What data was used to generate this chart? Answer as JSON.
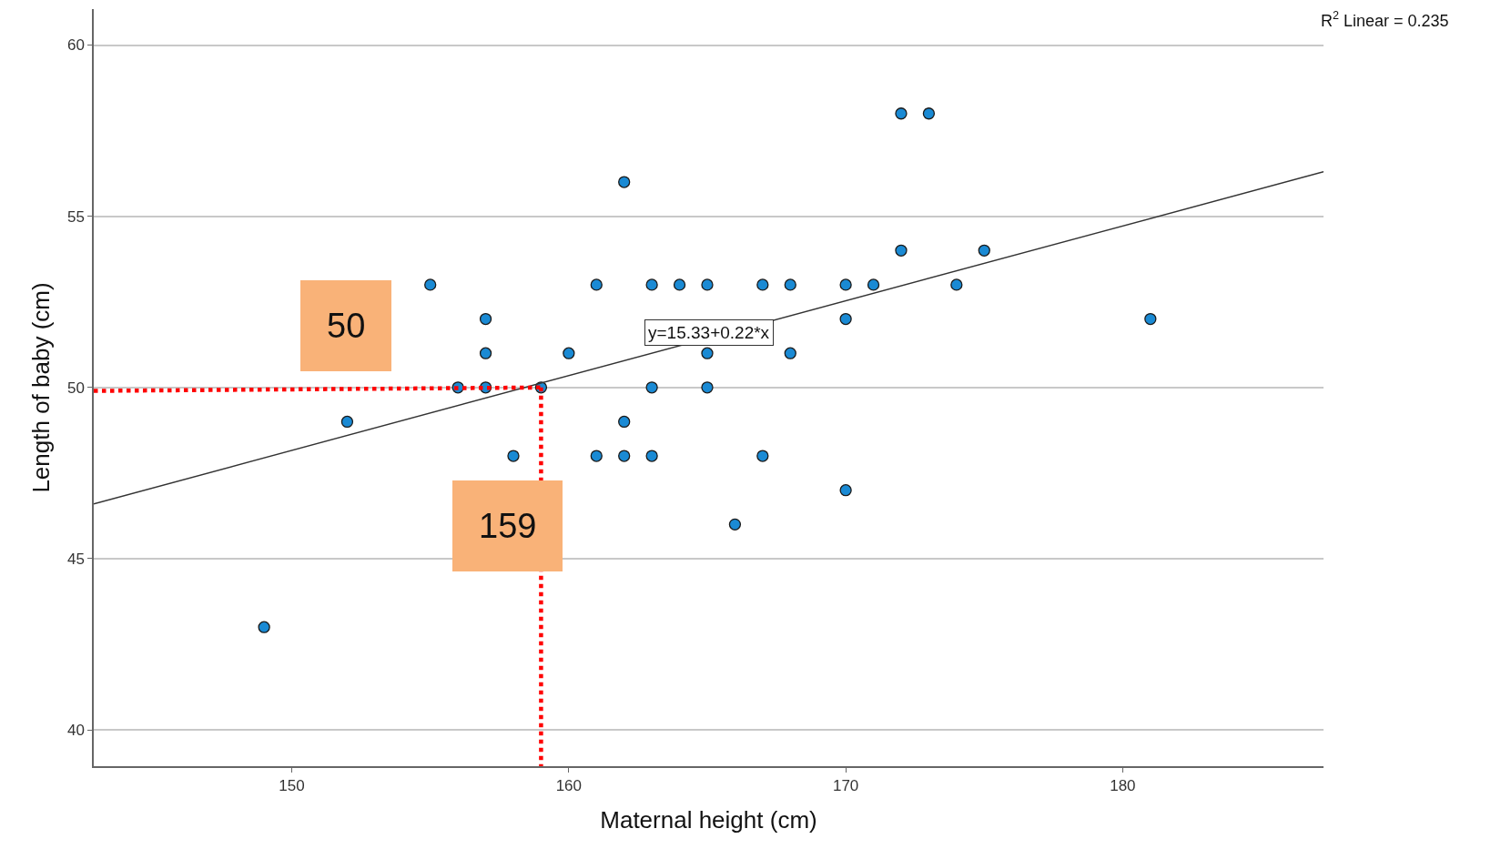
{
  "chart_data": {
    "type": "scatter",
    "xlabel": "Maternal height (cm)",
    "ylabel": "Length of baby (cm)",
    "xlim": [
      142.85,
      187.25
    ],
    "ylim": [
      38.94,
      61.05
    ],
    "xticks": [
      150,
      160,
      170,
      180
    ],
    "yticks": [
      40,
      45,
      50,
      55,
      60
    ],
    "grid": "y",
    "series": [
      {
        "color": "#1a8ad4",
        "marker": "circle",
        "x": [
          149,
          152,
          155,
          156,
          157,
          157,
          157,
          158,
          159,
          160,
          161,
          161,
          162,
          162,
          162,
          163,
          163,
          163,
          164,
          165,
          165,
          165,
          166,
          167,
          167,
          168,
          168,
          170,
          170,
          170,
          171,
          172,
          172,
          173,
          174,
          175,
          181
        ],
        "values": [
          43,
          49,
          53,
          50,
          52,
          51,
          50,
          48,
          50,
          51,
          53,
          48,
          56,
          49,
          48,
          53,
          50,
          48,
          53,
          53,
          51,
          50,
          46,
          53,
          48,
          53,
          51,
          53,
          52,
          47,
          53,
          58,
          54,
          58,
          53,
          54,
          52
        ]
      },
      {
        "type": "line",
        "color": "#333333",
        "marker": "none",
        "line_style": "solid",
        "x": [
          142.85,
          187.25
        ],
        "values": [
          46.6,
          56.3
        ]
      },
      {
        "type": "line",
        "color": "#ff0000",
        "marker": "none",
        "line_style": "dotted",
        "x": [
          142.85,
          159
        ],
        "values": [
          49.9,
          50
        ]
      },
      {
        "type": "line",
        "color": "#ff0000",
        "marker": "none",
        "line_style": "dotted",
        "x": [
          159,
          159
        ],
        "values": [
          50,
          38.94
        ]
      }
    ],
    "annotations": [
      "y=15.33+0.22*x",
      "50",
      "159",
      "R$^{2}$ Linear = 0.235"
    ]
  }
}
